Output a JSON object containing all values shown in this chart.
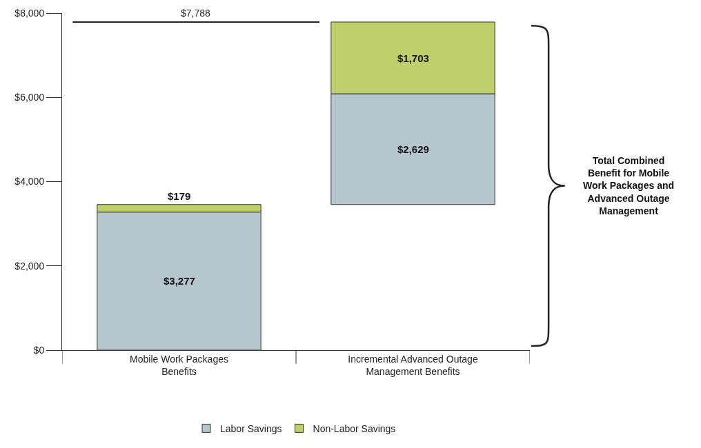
{
  "chart_data": {
    "type": "bar",
    "categories": [
      "Mobile Work Packages Benefits",
      "Incremental Advanced Outage Management Benefits"
    ],
    "series": [
      {
        "name": "Labor Savings",
        "color": "#b6c6cd",
        "base": [
          0,
          3456
        ],
        "values": [
          3277,
          2629
        ],
        "value_labels": [
          "$3,277",
          "$2,629"
        ]
      },
      {
        "name": "Non-Labor Savings",
        "color": "#bfcf6b",
        "base": [
          3277,
          6085
        ],
        "values": [
          179,
          1703
        ],
        "value_labels": [
          "$179",
          "$1,703"
        ]
      }
    ],
    "ylim": [
      0,
      8000
    ],
    "yticks": [
      {
        "value": 0,
        "label": "$0"
      },
      {
        "value": 2000,
        "label": "$2,000"
      },
      {
        "value": 4000,
        "label": "$4,000"
      },
      {
        "value": 6000,
        "label": "$6,000"
      },
      {
        "value": 8000,
        "label": "$8,000"
      }
    ],
    "ref_lines": [
      {
        "axis": "y",
        "value": 7788,
        "label": "$7,788",
        "color": "#222222"
      }
    ],
    "annotations": [
      "Total Combined Benefit for Mobile Work Packages and Advanced Outage Management"
    ],
    "grid": false,
    "legend": "bottom"
  }
}
